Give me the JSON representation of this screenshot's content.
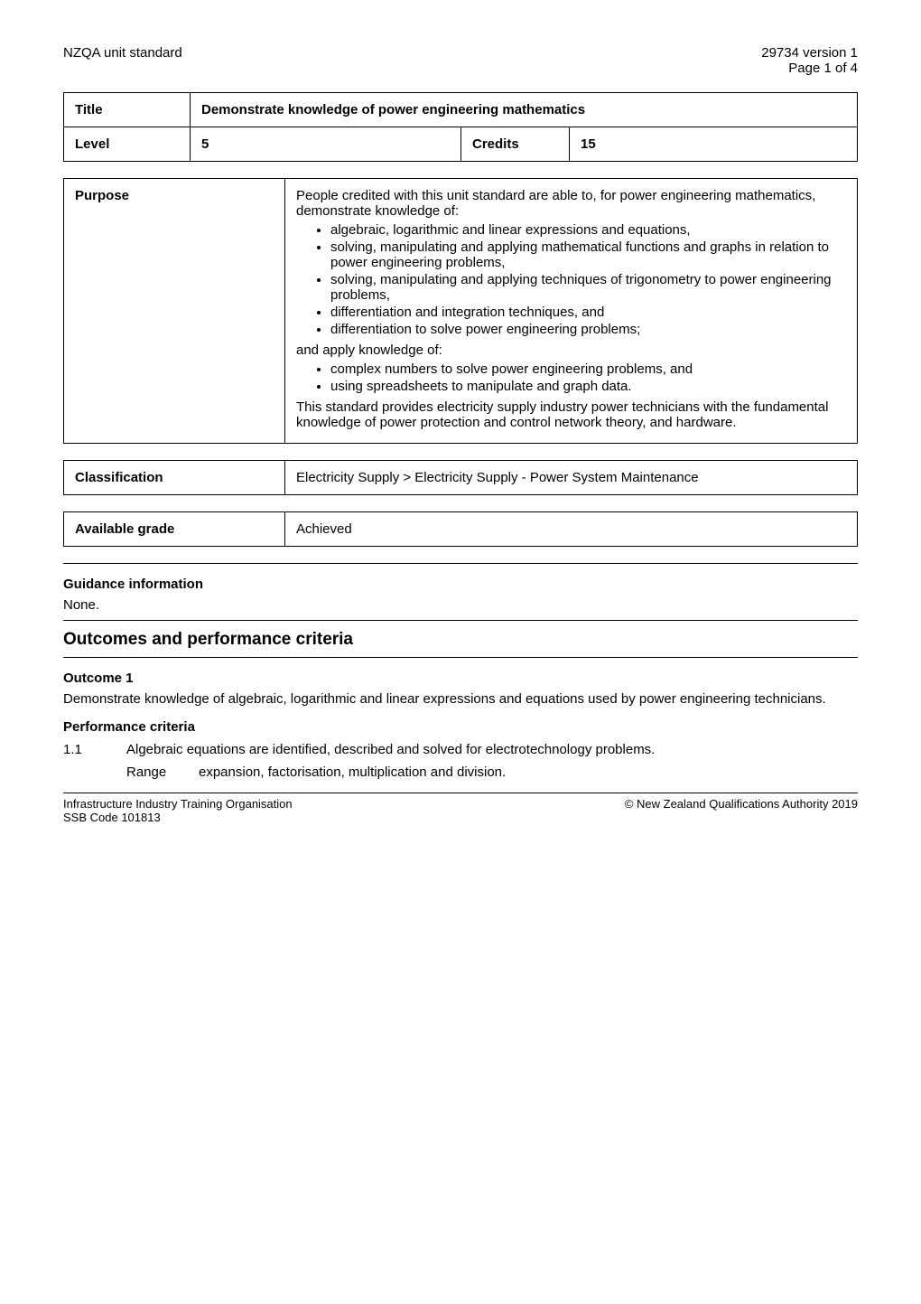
{
  "header": {
    "left": "NZQA unit standard",
    "right_line1": "29734 version 1",
    "right_line2": "Page 1 of 4"
  },
  "title_table": {
    "title_label": "Title",
    "title_value": "Demonstrate knowledge of power engineering mathematics",
    "level_label": "Level",
    "level_value": "5",
    "credits_label": "Credits",
    "credits_value": "15"
  },
  "purpose": {
    "label": "Purpose",
    "intro": "People credited with this unit standard are able to, for power engineering mathematics, demonstrate knowledge of:",
    "bullets_a": [
      "algebraic, logarithmic and linear expressions and equations,",
      "solving, manipulating and applying mathematical functions and graphs in relation to power engineering problems,",
      "solving, manipulating and applying techniques of trigonometry to power engineering problems,",
      "differentiation and integration techniques, and",
      "differentiation to solve power engineering problems;"
    ],
    "mid": "and apply knowledge of:",
    "bullets_b": [
      "complex numbers to solve power engineering problems, and",
      "using spreadsheets to manipulate and graph data."
    ],
    "outro": "This standard provides electricity supply industry power technicians with the fundamental knowledge of power protection and control network theory, and hardware."
  },
  "classification": {
    "label": "Classification",
    "value": "Electricity Supply > Electricity Supply - Power System Maintenance"
  },
  "grade": {
    "label": "Available grade",
    "value": "Achieved"
  },
  "guidance": {
    "heading": "Guidance information",
    "body": "None."
  },
  "outcomes": {
    "heading": "Outcomes and performance criteria",
    "outcome1": {
      "heading": "Outcome 1",
      "body": "Demonstrate knowledge of algebraic, logarithmic and linear expressions and equations used by power engineering technicians.",
      "pc_heading": "Performance criteria",
      "pc_num": "1.1",
      "pc_text": "Algebraic equations are identified, described and solved for electrotechnology problems.",
      "range_label": "Range",
      "range_text": "expansion, factorisation, multiplication and division."
    }
  },
  "footer": {
    "left_line1": "Infrastructure Industry Training Organisation",
    "left_line2": "SSB Code 101813",
    "right": "© New Zealand Qualifications Authority 2019"
  },
  "colors": {
    "text": "#000000",
    "background": "#ffffff",
    "border": "#000000"
  }
}
